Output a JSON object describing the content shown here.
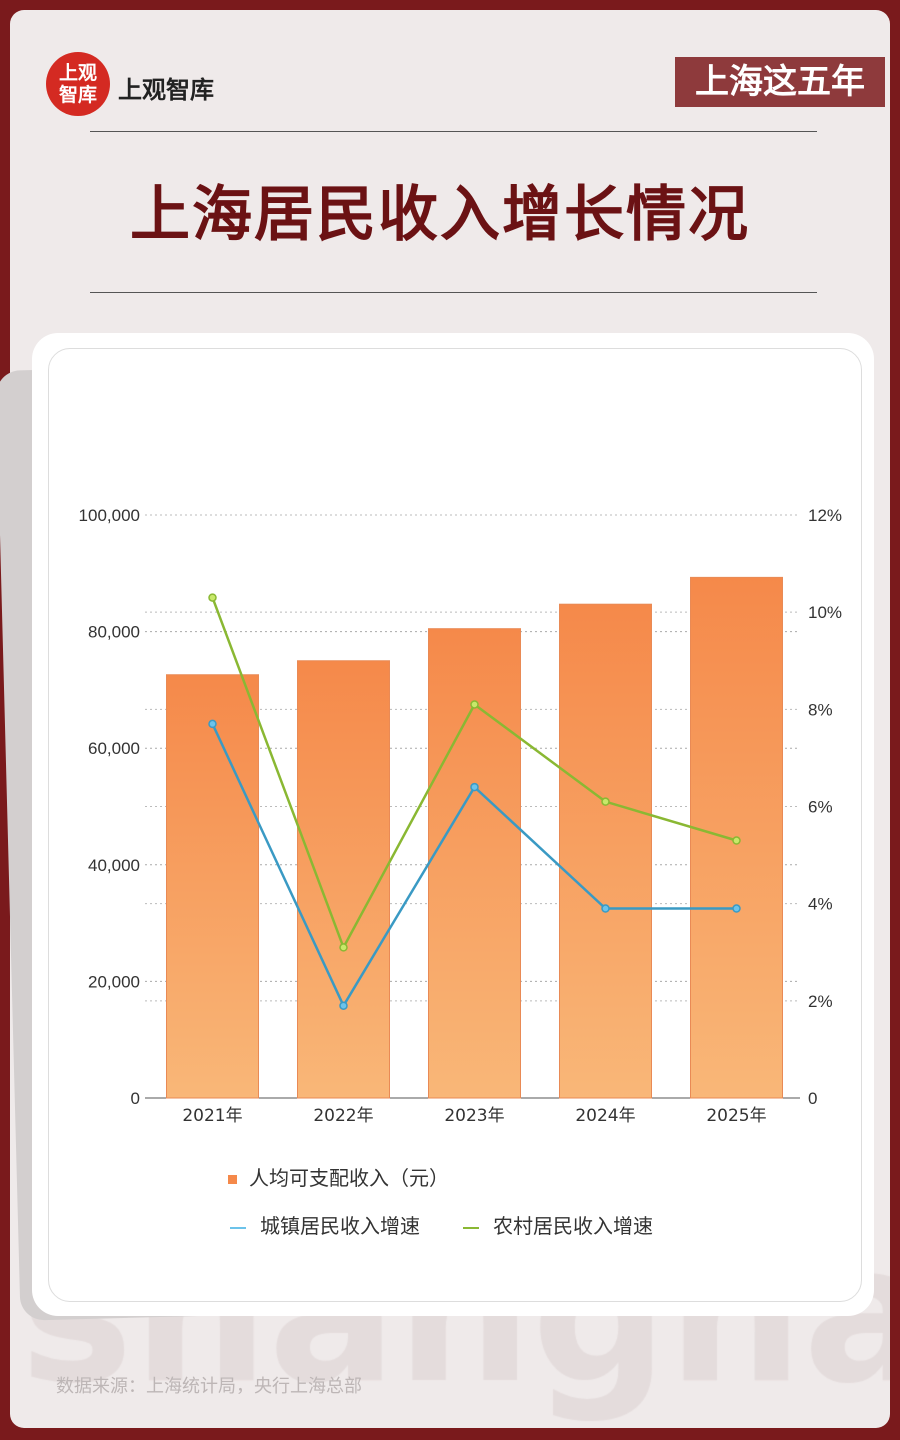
{
  "header": {
    "logo_mark": "上观智库",
    "logo_text": "上观智库",
    "series_tag": "上海这五年",
    "title": "上海居民收入增长情况"
  },
  "background_word": "shanghai",
  "source": "数据来源：上海统计局，央行上海总部",
  "colors": {
    "bar": "#f5894a",
    "bar_bottom": "#f9b778",
    "urban": "#3a9ac4",
    "rural": "#8ab833",
    "frame": "#7a1a1c"
  },
  "chart_data": {
    "type": "bar+line",
    "categories": [
      "2021年",
      "2022年",
      "2023年",
      "2024年",
      "2025年"
    ],
    "left_axis": {
      "ticks": [
        "0",
        "20,000",
        "40,000",
        "60,000",
        "80,000",
        "100,000"
      ],
      "range": [
        0,
        100000
      ]
    },
    "right_axis": {
      "ticks": [
        "0",
        "2%",
        "4%",
        "6%",
        "8%",
        "10%",
        "12%"
      ],
      "range": [
        0,
        12
      ]
    },
    "grid": true,
    "legend_position": "bottom",
    "series": [
      {
        "name": "人均可支配收入（元）",
        "type": "bar",
        "axis": "left",
        "values": [
          72600,
          75000,
          80500,
          84700,
          89300
        ]
      },
      {
        "name": "城镇居民收入增速",
        "type": "line",
        "axis": "right",
        "values": [
          7.7,
          1.9,
          6.4,
          3.9,
          3.9
        ]
      },
      {
        "name": "农村居民收入增速",
        "type": "line",
        "axis": "right",
        "values": [
          10.3,
          3.1,
          8.1,
          6.1,
          5.3
        ]
      }
    ]
  }
}
